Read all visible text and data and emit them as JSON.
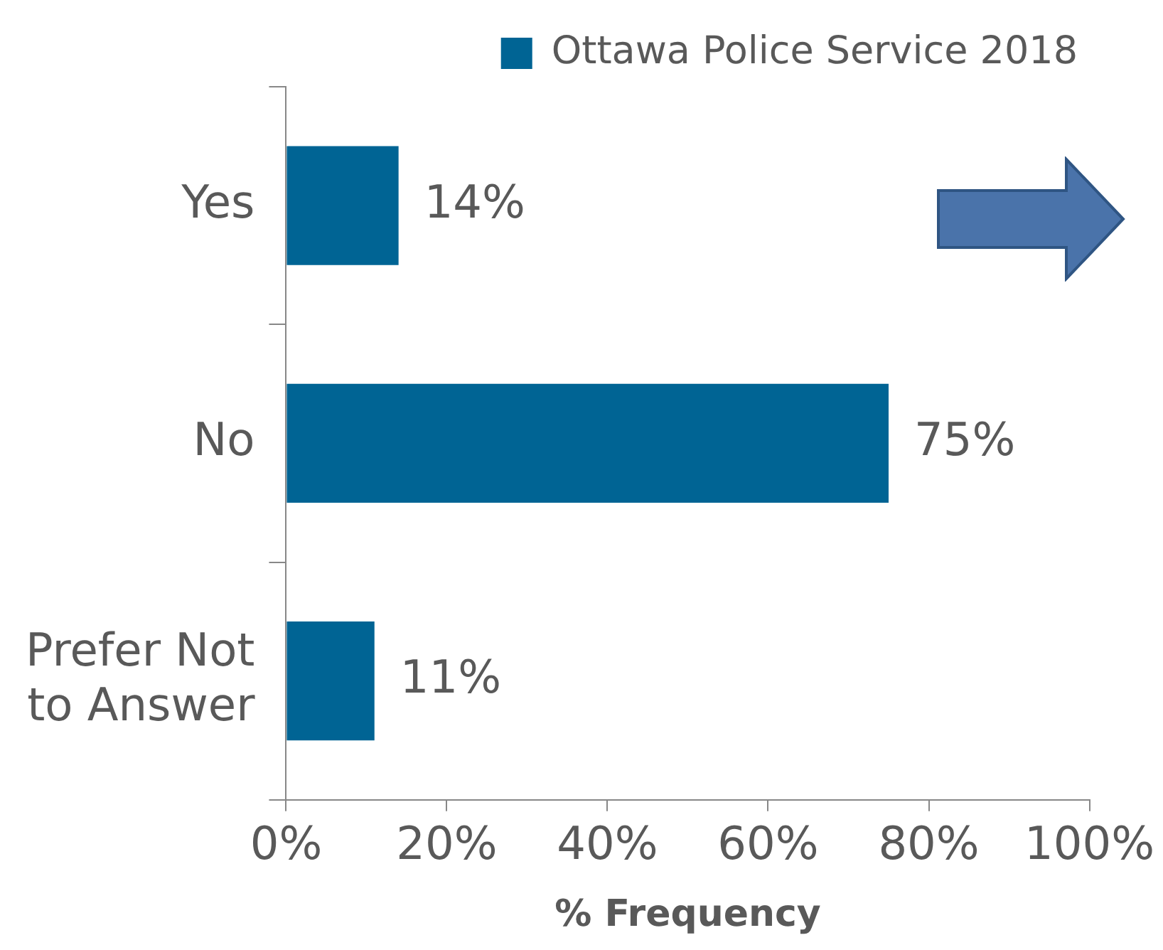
{
  "chart_data": {
    "type": "bar",
    "orientation": "horizontal",
    "xlabel": "% Frequency",
    "categories": [
      "Yes",
      "No",
      "Prefer Not to Answer"
    ],
    "series": [
      {
        "name": "Ottawa Police Service 2018",
        "color": "#006494",
        "values": [
          14,
          75,
          11
        ],
        "value_labels": [
          "14%",
          "75%",
          "11%"
        ]
      }
    ],
    "xlim": [
      0,
      100
    ],
    "xticks": [
      {
        "value": 0,
        "label": "0%"
      },
      {
        "value": 20,
        "label": "20%"
      },
      {
        "value": 40,
        "label": "40%"
      },
      {
        "value": 60,
        "label": "60%"
      },
      {
        "value": 80,
        "label": "80%"
      },
      {
        "value": 100,
        "label": "100%"
      }
    ],
    "grid": false,
    "legend": "top right"
  }
}
